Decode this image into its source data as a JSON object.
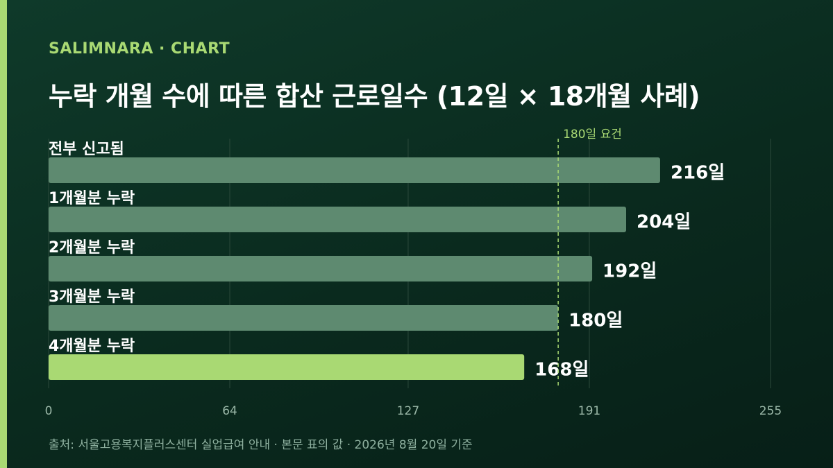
{
  "header": {
    "brand": "SALIMNARA · CHART",
    "title": "누락 개월 수에 따른 합산 근로일수 (12일 × 18개월 사례)"
  },
  "footer": {
    "source": "출처: 서울고용복지플러스센터 실업급여 안내 · 본문 표의 값 · 2026년 8월 20일 기준"
  },
  "colors": {
    "bar": "#5e8a70",
    "highlight": "#a9d973",
    "gridline": "#2c4a3c",
    "reference_line": "#a9d973",
    "label": "#ffffff",
    "tick": "#9bb8a8"
  },
  "chart_data": {
    "type": "bar",
    "orientation": "horizontal",
    "title": "누락 개월 수에 따른 합산 근로일수 (12일 × 18개월 사례)",
    "categories": [
      "전부 신고됨",
      "1개월분 누락",
      "2개월분 누락",
      "3개월분 누락",
      "4개월분 누락"
    ],
    "values": [
      216,
      204,
      192,
      180,
      168
    ],
    "value_labels": [
      "216일",
      "204일",
      "192일",
      "180일",
      "168일"
    ],
    "highlight_index": 4,
    "xlim": [
      0,
      255
    ],
    "xticks": [
      0,
      64,
      127,
      191,
      255
    ],
    "grid": true,
    "reference_line": {
      "value": 180,
      "label": "180일 요건"
    }
  }
}
